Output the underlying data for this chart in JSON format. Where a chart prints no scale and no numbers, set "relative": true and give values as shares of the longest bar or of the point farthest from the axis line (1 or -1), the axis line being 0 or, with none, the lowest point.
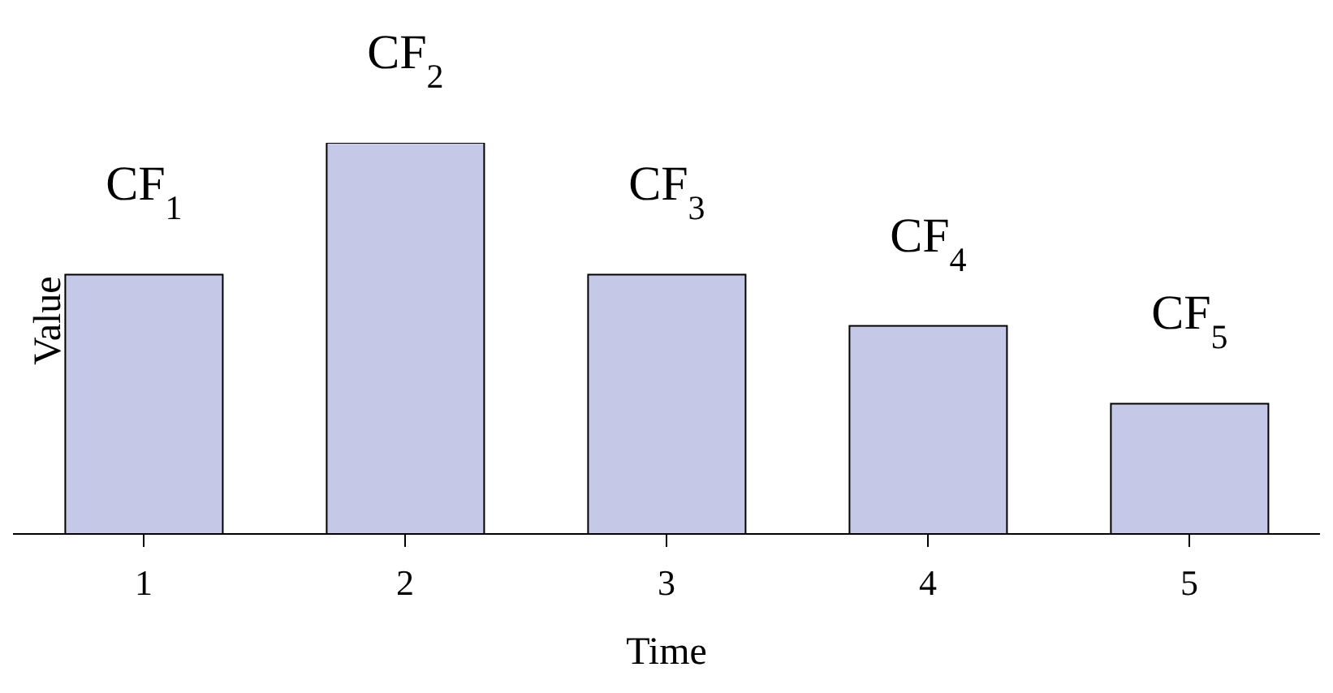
{
  "chart_data": {
    "type": "bar",
    "xlabel": "Time",
    "ylabel": "Value",
    "categories": [
      "1",
      "2",
      "3",
      "4",
      "5"
    ],
    "relative": true,
    "values": [
      0.663,
      1,
      0.663,
      0.532,
      0.333
    ],
    "annotations": [
      {
        "text": "CF$_{1}$",
        "x": "1",
        "y": 0.663
      },
      {
        "text": "CF$_{2}$",
        "x": "2",
        "y": 1
      },
      {
        "text": "CF$_{3}$",
        "x": "3",
        "y": 0.663
      },
      {
        "text": "CF$_{4}$",
        "x": "4",
        "y": 0.532
      },
      {
        "text": "CF$_{5}$",
        "x": "5",
        "y": 0.333
      }
    ],
    "color": "#c5c8e6"
  }
}
